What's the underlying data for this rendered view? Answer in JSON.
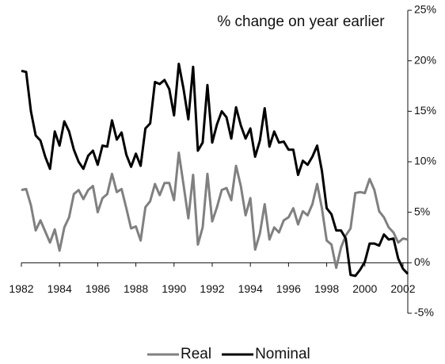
{
  "chart_data": {
    "type": "line",
    "title": "% change on year earlier",
    "x": [
      1982,
      1982.25,
      1982.5,
      1982.75,
      1983,
      1983.25,
      1983.5,
      1983.75,
      1984,
      1984.25,
      1984.5,
      1984.75,
      1985,
      1985.25,
      1985.5,
      1985.75,
      1986,
      1986.25,
      1986.5,
      1986.75,
      1987,
      1987.25,
      1987.5,
      1987.75,
      1988,
      1988.25,
      1988.5,
      1988.75,
      1989,
      1989.25,
      1989.5,
      1989.75,
      1990,
      1990.25,
      1990.5,
      1990.75,
      1991,
      1991.25,
      1991.5,
      1991.75,
      1992,
      1992.25,
      1992.5,
      1992.75,
      1993,
      1993.25,
      1993.5,
      1993.75,
      1994,
      1994.25,
      1994.5,
      1994.75,
      1995,
      1995.25,
      1995.5,
      1995.75,
      1996,
      1996.25,
      1996.5,
      1996.75,
      1997,
      1997.25,
      1997.5,
      1997.75,
      1998,
      1998.25,
      1998.5,
      1998.75,
      1999,
      1999.25,
      1999.5,
      1999.75,
      2000,
      2000.25,
      2000.5,
      2000.75,
      2001,
      2001.25,
      2001.5,
      2001.75,
      2002,
      2002.25
    ],
    "series": [
      {
        "name": "Real",
        "color": "#808080",
        "values": [
          7.2,
          7.3,
          5.7,
          3.2,
          4.2,
          3.1,
          2.0,
          3.3,
          1.2,
          3.5,
          4.5,
          6.8,
          7.2,
          6.3,
          7.2,
          7.6,
          5.0,
          6.4,
          6.8,
          8.8,
          7.0,
          7.3,
          5.4,
          3.4,
          3.6,
          2.2,
          5.5,
          6.1,
          7.8,
          6.7,
          7.9,
          7.9,
          6.2,
          10.9,
          7.7,
          4.4,
          8.7,
          1.8,
          3.5,
          8.8,
          4.1,
          5.5,
          7.2,
          7.4,
          6.2,
          9.6,
          7.6,
          4.7,
          6.4,
          1.3,
          2.9,
          5.8,
          2.3,
          3.5,
          3.0,
          4.2,
          4.5,
          5.4,
          3.8,
          5.1,
          4.7,
          5.8,
          7.8,
          5.4,
          2.2,
          1.8,
          -0.5,
          1.5,
          2.7,
          3.4,
          6.9,
          7.0,
          6.9,
          8.3,
          7.2,
          5.1,
          4.5,
          3.5,
          3.0,
          2.0,
          2.4,
          2.3
        ]
      },
      {
        "name": "Nominal",
        "color": "#000000",
        "values": [
          19.0,
          18.9,
          15.0,
          12.6,
          12.1,
          10.5,
          9.3,
          13.0,
          11.6,
          14.0,
          13.0,
          11.2,
          10.0,
          9.3,
          10.6,
          11.1,
          9.7,
          11.6,
          11.5,
          14.1,
          12.2,
          12.9,
          10.7,
          9.5,
          10.8,
          9.6,
          13.3,
          13.8,
          17.9,
          17.7,
          18.1,
          17.2,
          14.6,
          19.7,
          17.2,
          14.2,
          19.4,
          11.1,
          11.9,
          17.6,
          11.9,
          13.7,
          15.0,
          14.4,
          12.3,
          15.4,
          13.6,
          12.3,
          13.3,
          10.5,
          12.1,
          15.3,
          11.5,
          13.0,
          11.9,
          12.0,
          11.2,
          11.2,
          8.7,
          10.1,
          9.7,
          10.5,
          11.6,
          9.1,
          5.4,
          4.8,
          3.2,
          3.2,
          2.4,
          -1.2,
          -1.3,
          -0.7,
          0.1,
          1.9,
          1.9,
          1.7,
          2.8,
          2.3,
          2.4,
          0.4,
          -0.6,
          -1.1
        ]
      }
    ],
    "xlim": [
      1982,
      2002.25
    ],
    "xticks": [
      1982,
      1984,
      1986,
      1988,
      1990,
      1992,
      1994,
      1996,
      1998,
      2000,
      2002
    ],
    "ylim": [
      -5,
      25
    ],
    "yticks": [
      {
        "value": -5,
        "label": "-5%"
      },
      {
        "value": 0,
        "label": "0%"
      },
      {
        "value": 5,
        "label": "5%"
      },
      {
        "value": 10,
        "label": "10%"
      },
      {
        "value": 15,
        "label": "15%"
      },
      {
        "value": 20,
        "label": "20%"
      },
      {
        "value": 25,
        "label": "25%"
      }
    ],
    "grid": false,
    "legend": "bottom"
  }
}
